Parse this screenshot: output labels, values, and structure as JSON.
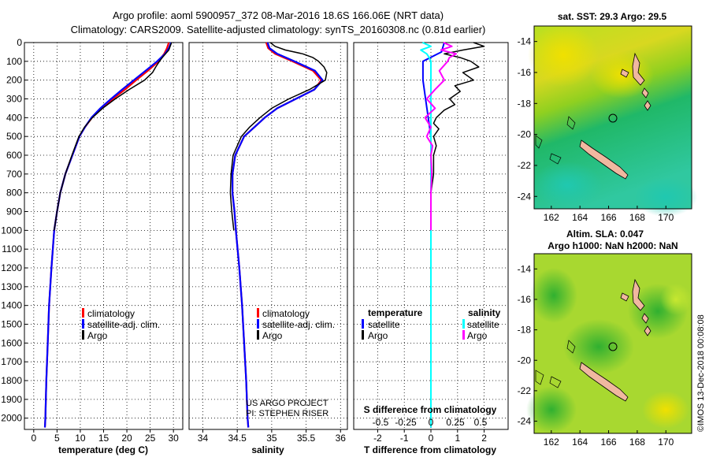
{
  "header": {
    "line1": "Argo profile: aoml 5900957_372 08-Mar-2016 18.6S 166.06E (NRT data)",
    "line2": "Climatology: CARS2009. Satellite-adjusted climatology: synTS_20160308.nc (0.81d earlier)"
  },
  "credits": {
    "project": "US ARGO PROJECT",
    "pi": "PI: STEPHEN RISER",
    "watermark": "©IMOS 13-Dec-2018 00:08:08"
  },
  "colors": {
    "climatology": "#ff0000",
    "satellite": "#0000ff",
    "argo": "#000000",
    "sal_satellite": "#00ffff",
    "sal_argo": "#ff00ff"
  },
  "chart_data": [
    {
      "type": "line",
      "id": "temperature",
      "xlabel": "temperature (deg C)",
      "xlim": [
        -2,
        32
      ],
      "xticks": [
        "0",
        "5",
        "10",
        "15",
        "20",
        "25",
        "30"
      ],
      "ylim": [
        0,
        2060
      ],
      "yticks": [
        "0",
        "100",
        "200",
        "300",
        "400",
        "500",
        "600",
        "700",
        "800",
        "900",
        "1000",
        "1100",
        "1200",
        "1300",
        "1400",
        "1500",
        "1600",
        "1700",
        "1800",
        "1900",
        "2000"
      ],
      "legend": [
        "climatology",
        "satellite-adj. clim.",
        "Argo"
      ],
      "series": [
        {
          "name": "climatology",
          "depth": [
            0,
            30,
            60,
            100,
            150,
            200,
            250,
            300,
            350,
            400,
            450,
            500,
            600,
            700,
            800,
            900,
            1000,
            1200,
            1400,
            1600,
            1800,
            2000,
            2050
          ],
          "values": [
            29.0,
            28.6,
            28.0,
            26.8,
            24.5,
            22.0,
            19.6,
            17.0,
            14.5,
            12.5,
            11.0,
            9.8,
            8.3,
            6.8,
            5.7,
            5.0,
            4.4,
            3.8,
            3.3,
            3.0,
            2.7,
            2.5,
            2.4
          ]
        },
        {
          "name": "satellite-adj. clim.",
          "depth": [
            0,
            30,
            60,
            100,
            150,
            200,
            250,
            300,
            350,
            400,
            450,
            500,
            600,
            700,
            800,
            900,
            1000,
            1200,
            1400,
            1600,
            1800,
            2000,
            2050
          ],
          "values": [
            29.5,
            29.0,
            28.2,
            26.5,
            24.0,
            21.5,
            19.0,
            16.6,
            14.3,
            12.4,
            11.0,
            9.8,
            8.3,
            6.8,
            5.7,
            5.0,
            4.4,
            3.8,
            3.3,
            3.0,
            2.7,
            2.5,
            2.4
          ]
        },
        {
          "name": "Argo",
          "depth": [
            0,
            20,
            40,
            60,
            80,
            100,
            130,
            160,
            200,
            250,
            300,
            350,
            400,
            450,
            500,
            600,
            700,
            800,
            900,
            1000
          ],
          "values": [
            29.6,
            29.3,
            29.0,
            28.3,
            27.6,
            27.0,
            26.2,
            25.5,
            23.8,
            20.5,
            17.5,
            14.8,
            12.6,
            10.9,
            9.7,
            8.2,
            6.8,
            5.7,
            5.0,
            4.4
          ]
        }
      ]
    },
    {
      "type": "line",
      "id": "salinity",
      "xlabel": "salinity",
      "xlim": [
        33.8,
        36.1
      ],
      "xticks": [
        "34",
        "34.5",
        "35",
        "35.5",
        "36"
      ],
      "ylim": [
        0,
        2060
      ],
      "legend": [
        "climatology",
        "satellite-adj. clim.",
        "Argo"
      ],
      "series": [
        {
          "name": "climatology",
          "depth": [
            0,
            30,
            60,
            100,
            150,
            200,
            250,
            300,
            350,
            400,
            450,
            500,
            600,
            700,
            800,
            900,
            1000,
            1200,
            1400,
            1600,
            1800,
            2000,
            2050
          ],
          "values": [
            34.92,
            34.95,
            35.05,
            35.3,
            35.6,
            35.72,
            35.62,
            35.35,
            35.08,
            34.9,
            34.75,
            34.6,
            34.47,
            34.43,
            34.43,
            34.46,
            34.48,
            34.53,
            34.57,
            34.6,
            34.63,
            34.65,
            34.66
          ]
        },
        {
          "name": "satellite-adj. clim.",
          "depth": [
            0,
            30,
            60,
            100,
            150,
            200,
            250,
            300,
            350,
            400,
            450,
            500,
            600,
            700,
            800,
            900,
            1000,
            1200,
            1400,
            1600,
            1800,
            2000,
            2050
          ],
          "values": [
            34.94,
            34.97,
            35.08,
            35.33,
            35.63,
            35.74,
            35.62,
            35.35,
            35.08,
            34.9,
            34.75,
            34.6,
            34.47,
            34.43,
            34.43,
            34.46,
            34.48,
            34.53,
            34.57,
            34.6,
            34.63,
            34.65,
            34.66
          ]
        },
        {
          "name": "Argo",
          "depth": [
            0,
            20,
            40,
            60,
            80,
            100,
            130,
            160,
            200,
            250,
            300,
            350,
            400,
            450,
            500,
            600,
            700,
            800,
            900,
            1000
          ],
          "values": [
            34.98,
            35.05,
            35.2,
            35.45,
            35.6,
            35.68,
            35.76,
            35.8,
            35.78,
            35.55,
            35.25,
            35.0,
            34.83,
            34.68,
            34.56,
            34.44,
            34.41,
            34.4,
            34.42,
            34.45
          ]
        }
      ]
    },
    {
      "type": "line",
      "id": "difference",
      "xlabel": "T difference from climatology",
      "xlim": [
        -2.9,
        2.9
      ],
      "xticks": [
        "-2",
        "-1",
        "0",
        "1",
        "2"
      ],
      "s_label": "S difference from climatology",
      "s_ticks": [
        "-0.5",
        "-0.25",
        "0",
        "0.25",
        "0.5"
      ],
      "ylim": [
        0,
        2060
      ],
      "legend_temperature": {
        "title": "temperature",
        "items": [
          "satellite",
          "Argo"
        ]
      },
      "legend_salinity": {
        "title": "salinity",
        "items": [
          "satellite",
          "Argo"
        ]
      },
      "series": [
        {
          "name": "T satellite",
          "depth": [
            0,
            50,
            100,
            200,
            300,
            400,
            500,
            600,
            800,
            1000,
            2050
          ],
          "values": [
            0.5,
            0.4,
            -0.3,
            -0.3,
            -0.2,
            -0.1,
            0.0,
            0.0,
            0.0,
            0.0,
            0.0
          ]
        },
        {
          "name": "T Argo",
          "depth": [
            0,
            20,
            40,
            60,
            80,
            100,
            130,
            160,
            200,
            230,
            260,
            300,
            330,
            360,
            400,
            430,
            460,
            500,
            550,
            600,
            700,
            800,
            900,
            1000
          ],
          "values": [
            1.6,
            2.0,
            1.2,
            0.5,
            1.1,
            1.5,
            1.8,
            1.2,
            1.6,
            0.9,
            1.1,
            0.7,
            0.9,
            0.5,
            0.2,
            0.1,
            0.3,
            0.1,
            0.2,
            0.1,
            0.1,
            0.0,
            0.0,
            0.0
          ]
        },
        {
          "name": "S satellite",
          "depth": [
            0,
            20,
            40,
            60,
            80,
            100,
            200,
            400,
            600,
            800,
            1000,
            2050
          ],
          "values": [
            -0.1,
            0.0,
            -0.12,
            -0.05,
            -0.02,
            0.0,
            0.0,
            0.0,
            0.0,
            0.0,
            0.0,
            0.0
          ]
        },
        {
          "name": "S Argo",
          "depth": [
            0,
            20,
            40,
            60,
            80,
            100,
            150,
            200,
            250,
            300,
            350,
            400,
            450,
            500,
            550,
            600,
            700,
            800,
            900,
            1000
          ],
          "values": [
            0.15,
            0.25,
            0.12,
            0.3,
            0.22,
            0.2,
            0.1,
            0.16,
            0.05,
            -0.05,
            0.05,
            -0.07,
            0.0,
            -0.05,
            0.02,
            0.0,
            0.01,
            0.0,
            0.0,
            0.0
          ]
        }
      ]
    },
    {
      "type": "heatmap",
      "id": "sst-map",
      "title": "sat. SST: 29.3 Argo: 29.5",
      "xlim": [
        160.8,
        171.8
      ],
      "ylim": [
        -24.8,
        -13.0
      ],
      "xticks": [
        "162",
        "164",
        "166",
        "168",
        "170"
      ],
      "yticks": [
        "-14",
        "-16",
        "-18",
        "-20",
        "-22",
        "-24"
      ],
      "float_position": {
        "lon": 166.06,
        "lat": -18.6
      }
    },
    {
      "type": "heatmap",
      "id": "sla-map",
      "title_line1": "Altim. SLA: 0.047",
      "title_line2": "Argo h1000: NaN h2000: NaN",
      "xlim": [
        160.8,
        171.8
      ],
      "ylim": [
        -24.8,
        -13.0
      ],
      "xticks": [
        "162",
        "164",
        "166",
        "168",
        "170"
      ],
      "yticks": [
        "-14",
        "-16",
        "-18",
        "-20",
        "-22",
        "-24"
      ],
      "float_position": {
        "lon": 166.06,
        "lat": -18.6
      }
    }
  ]
}
